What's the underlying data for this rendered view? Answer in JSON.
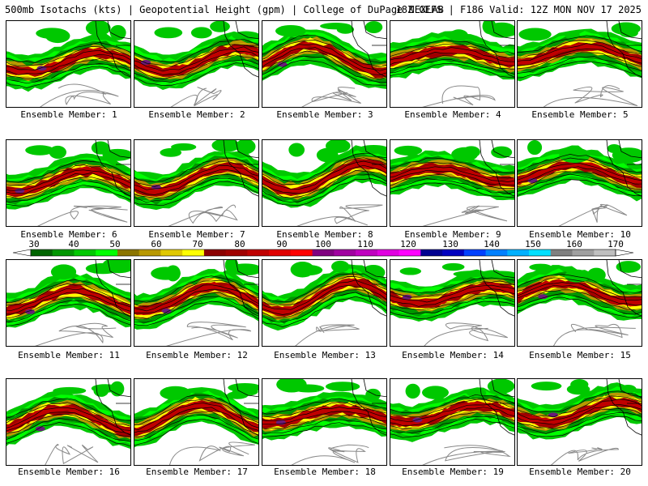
{
  "header": {
    "title": "500mb Isotachs (kts) | Geopotential Height (gpm) | College of DuPage NEXLAB",
    "run": "18Z GEFS | F186 Valid: 12Z MON NOV 17 2025"
  },
  "legend": {
    "ticks": [
      "30",
      "40",
      "50",
      "60",
      "70",
      "80",
      "90",
      "100",
      "110",
      "120",
      "130",
      "140",
      "150",
      "160",
      "170"
    ],
    "colors": [
      "#006400",
      "#009600",
      "#00c800",
      "#00ff00",
      "#8b7500",
      "#b89800",
      "#e0c800",
      "#ffff00",
      "#8b0000",
      "#a00000",
      "#c00000",
      "#e00000",
      "#ff0000",
      "#800080",
      "#a000a0",
      "#c000c0",
      "#e000e0",
      "#ff00ff",
      "#000090",
      "#0000c0",
      "#0040ff",
      "#0080ff",
      "#00b0ff",
      "#00e0ff",
      "#808080",
      "#a0a0a0",
      "#c0c0c0"
    ]
  },
  "members": [
    {
      "label": "Ensemble Member: 1"
    },
    {
      "label": "Ensemble Member: 2"
    },
    {
      "label": "Ensemble Member: 3"
    },
    {
      "label": "Ensemble Member: 4"
    },
    {
      "label": "Ensemble Member: 5"
    },
    {
      "label": "Ensemble Member: 6"
    },
    {
      "label": "Ensemble Member: 7"
    },
    {
      "label": "Ensemble Member: 8"
    },
    {
      "label": "Ensemble Member: 9"
    },
    {
      "label": "Ensemble Member: 10"
    },
    {
      "label": "Ensemble Member: 11"
    },
    {
      "label": "Ensemble Member: 12"
    },
    {
      "label": "Ensemble Member: 13"
    },
    {
      "label": "Ensemble Member: 14"
    },
    {
      "label": "Ensemble Member: 15"
    },
    {
      "label": "Ensemble Member: 16"
    },
    {
      "label": "Ensemble Member: 17"
    },
    {
      "label": "Ensemble Member: 18"
    },
    {
      "label": "Ensemble Member: 19"
    },
    {
      "label": "Ensemble Member: 20"
    }
  ]
}
